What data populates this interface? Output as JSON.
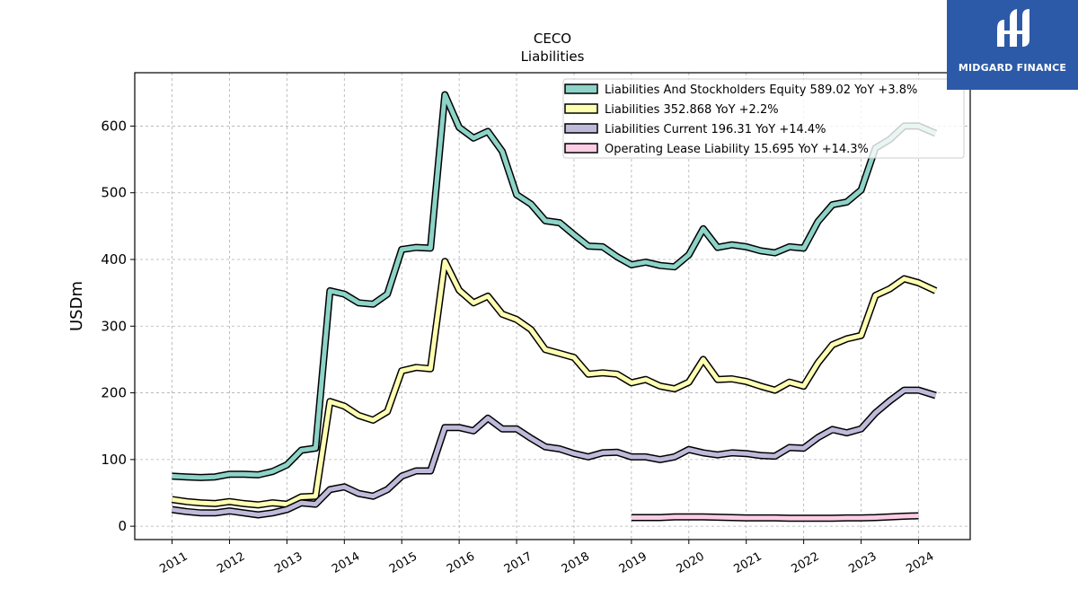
{
  "chart_data": {
    "type": "line",
    "title": "CECO",
    "subtitle": "Liabilities",
    "ylabel": "USDm",
    "xlabel": "",
    "ylim": [
      -20,
      680
    ],
    "xlim": [
      2010.35,
      2024.9
    ],
    "x_ticks": [
      2011,
      2012,
      2013,
      2014,
      2015,
      2016,
      2017,
      2018,
      2019,
      2020,
      2021,
      2022,
      2023,
      2024
    ],
    "y_ticks": [
      0,
      100,
      200,
      300,
      400,
      500,
      600
    ],
    "grid": true,
    "legend_position": "top-right",
    "series": [
      {
        "name": "Liabilities And Stockholders Equity",
        "legend_value": "589.02 YoY +3.8%",
        "color": "#8dd3c7",
        "points": [
          [
            2011.0,
            75
          ],
          [
            2011.25,
            74
          ],
          [
            2011.5,
            73
          ],
          [
            2011.75,
            74
          ],
          [
            2012.0,
            78
          ],
          [
            2012.25,
            78
          ],
          [
            2012.5,
            77
          ],
          [
            2012.75,
            82
          ],
          [
            2013.0,
            92
          ],
          [
            2013.25,
            114
          ],
          [
            2013.5,
            117
          ],
          [
            2013.75,
            353
          ],
          [
            2014.0,
            348
          ],
          [
            2014.25,
            335
          ],
          [
            2014.5,
            333
          ],
          [
            2014.75,
            348
          ],
          [
            2015.0,
            415
          ],
          [
            2015.25,
            418
          ],
          [
            2015.5,
            417
          ],
          [
            2015.75,
            647
          ],
          [
            2016.0,
            598
          ],
          [
            2016.25,
            582
          ],
          [
            2016.5,
            592
          ],
          [
            2016.75,
            562
          ],
          [
            2017.0,
            497
          ],
          [
            2017.25,
            483
          ],
          [
            2017.5,
            458
          ],
          [
            2017.75,
            455
          ],
          [
            2018.0,
            437
          ],
          [
            2018.25,
            420
          ],
          [
            2018.5,
            419
          ],
          [
            2018.75,
            404
          ],
          [
            2019.0,
            392
          ],
          [
            2019.25,
            396
          ],
          [
            2019.5,
            391
          ],
          [
            2019.75,
            389
          ],
          [
            2020.0,
            407
          ],
          [
            2020.25,
            446
          ],
          [
            2020.5,
            418
          ],
          [
            2020.75,
            422
          ],
          [
            2021.0,
            419
          ],
          [
            2021.25,
            413
          ],
          [
            2021.5,
            410
          ],
          [
            2021.75,
            419
          ],
          [
            2022.0,
            417
          ],
          [
            2022.25,
            457
          ],
          [
            2022.5,
            482
          ],
          [
            2022.75,
            486
          ],
          [
            2023.0,
            504
          ],
          [
            2023.25,
            567
          ],
          [
            2023.5,
            580
          ],
          [
            2023.75,
            600
          ],
          [
            2024.0,
            600
          ],
          [
            2024.3,
            589
          ]
        ]
      },
      {
        "name": "Liabilities",
        "legend_value": "352.868 YoY +2.2%",
        "color": "#ffffb3",
        "points": [
          [
            2011.0,
            40
          ],
          [
            2011.25,
            37
          ],
          [
            2011.5,
            35
          ],
          [
            2011.75,
            34
          ],
          [
            2012.0,
            37
          ],
          [
            2012.25,
            34
          ],
          [
            2012.5,
            32
          ],
          [
            2012.75,
            35
          ],
          [
            2013.0,
            33
          ],
          [
            2013.25,
            44
          ],
          [
            2013.5,
            45
          ],
          [
            2013.75,
            187
          ],
          [
            2014.0,
            180
          ],
          [
            2014.25,
            166
          ],
          [
            2014.5,
            159
          ],
          [
            2014.75,
            172
          ],
          [
            2015.0,
            233
          ],
          [
            2015.25,
            238
          ],
          [
            2015.5,
            236
          ],
          [
            2015.75,
            397
          ],
          [
            2016.0,
            354
          ],
          [
            2016.25,
            335
          ],
          [
            2016.5,
            345
          ],
          [
            2016.75,
            318
          ],
          [
            2017.0,
            310
          ],
          [
            2017.25,
            295
          ],
          [
            2017.5,
            265
          ],
          [
            2017.75,
            259
          ],
          [
            2018.0,
            253
          ],
          [
            2018.25,
            228
          ],
          [
            2018.5,
            230
          ],
          [
            2018.75,
            228
          ],
          [
            2019.0,
            215
          ],
          [
            2019.25,
            220
          ],
          [
            2019.5,
            210
          ],
          [
            2019.75,
            206
          ],
          [
            2020.0,
            216
          ],
          [
            2020.25,
            250
          ],
          [
            2020.5,
            220
          ],
          [
            2020.75,
            221
          ],
          [
            2021.0,
            217
          ],
          [
            2021.25,
            210
          ],
          [
            2021.5,
            204
          ],
          [
            2021.75,
            216
          ],
          [
            2022.0,
            210
          ],
          [
            2022.25,
            245
          ],
          [
            2022.5,
            272
          ],
          [
            2022.75,
            281
          ],
          [
            2023.0,
            286
          ],
          [
            2023.25,
            346
          ],
          [
            2023.5,
            356
          ],
          [
            2023.75,
            371
          ],
          [
            2024.0,
            365
          ],
          [
            2024.3,
            353
          ]
        ]
      },
      {
        "name": "Liabilities Current",
        "legend_value": "196.31 YoY +14.4%",
        "color": "#bebada",
        "points": [
          [
            2011.0,
            25
          ],
          [
            2011.25,
            22
          ],
          [
            2011.5,
            20
          ],
          [
            2011.75,
            20
          ],
          [
            2012.0,
            23
          ],
          [
            2012.25,
            20
          ],
          [
            2012.5,
            17
          ],
          [
            2012.75,
            20
          ],
          [
            2013.0,
            25
          ],
          [
            2013.25,
            35
          ],
          [
            2013.5,
            33
          ],
          [
            2013.75,
            55
          ],
          [
            2014.0,
            59
          ],
          [
            2014.25,
            49
          ],
          [
            2014.5,
            45
          ],
          [
            2014.75,
            55
          ],
          [
            2015.0,
            75
          ],
          [
            2015.25,
            83
          ],
          [
            2015.5,
            83
          ],
          [
            2015.75,
            148
          ],
          [
            2016.0,
            148
          ],
          [
            2016.25,
            143
          ],
          [
            2016.5,
            162
          ],
          [
            2016.75,
            146
          ],
          [
            2017.0,
            146
          ],
          [
            2017.25,
            132
          ],
          [
            2017.5,
            119
          ],
          [
            2017.75,
            116
          ],
          [
            2018.0,
            109
          ],
          [
            2018.25,
            104
          ],
          [
            2018.5,
            110
          ],
          [
            2018.75,
            111
          ],
          [
            2019.0,
            104
          ],
          [
            2019.25,
            104
          ],
          [
            2019.5,
            100
          ],
          [
            2019.75,
            104
          ],
          [
            2020.0,
            115
          ],
          [
            2020.25,
            110
          ],
          [
            2020.5,
            107
          ],
          [
            2020.75,
            110
          ],
          [
            2021.0,
            109
          ],
          [
            2021.25,
            106
          ],
          [
            2021.5,
            105
          ],
          [
            2021.75,
            118
          ],
          [
            2022.0,
            117
          ],
          [
            2022.25,
            133
          ],
          [
            2022.5,
            145
          ],
          [
            2022.75,
            140
          ],
          [
            2023.0,
            146
          ],
          [
            2023.25,
            170
          ],
          [
            2023.5,
            188
          ],
          [
            2023.75,
            204
          ],
          [
            2024.0,
            204
          ],
          [
            2024.3,
            196
          ]
        ]
      },
      {
        "name": "Operating Lease Liability",
        "legend_value": "15.695 YoY +14.3%",
        "color": "#fccde5",
        "points": [
          [
            2019.0,
            13
          ],
          [
            2019.25,
            13
          ],
          [
            2019.5,
            13
          ],
          [
            2019.75,
            14
          ],
          [
            2020.0,
            14
          ],
          [
            2020.25,
            14
          ],
          [
            2020.5,
            13.5
          ],
          [
            2020.75,
            13
          ],
          [
            2021.0,
            12.5
          ],
          [
            2021.25,
            12.5
          ],
          [
            2021.5,
            12.5
          ],
          [
            2021.75,
            12
          ],
          [
            2022.0,
            12
          ],
          [
            2022.25,
            12
          ],
          [
            2022.5,
            12
          ],
          [
            2022.75,
            12.5
          ],
          [
            2023.0,
            12.5
          ],
          [
            2023.25,
            13
          ],
          [
            2023.5,
            14
          ],
          [
            2023.75,
            15
          ],
          [
            2024.0,
            15.7
          ]
        ]
      }
    ]
  },
  "logo": {
    "text": "MIDGARD FINANCE",
    "background": "#2c5aa8"
  }
}
